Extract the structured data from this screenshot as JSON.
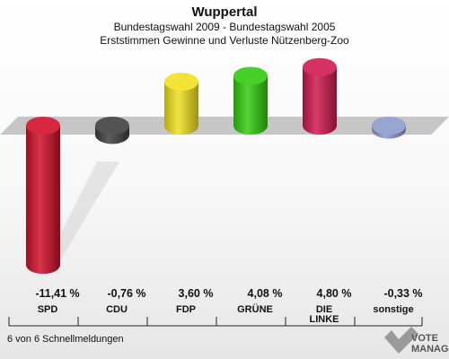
{
  "chart_data": {
    "type": "bar",
    "title": "Wuppertal",
    "subtitle_1": "Bundestagswahl 2009 - Bundestagswahl 2005",
    "subtitle_2": "Erststimmen Gewinne und Verluste Nützenberg-Zoo",
    "categories": [
      "SPD",
      "CDU",
      "FDP",
      "GRÜNE",
      "DIE\nLINKE",
      "sonstige"
    ],
    "values": [
      -11.41,
      -0.76,
      3.6,
      4.08,
      4.8,
      -0.33
    ],
    "value_labels": [
      "-11,41 %",
      "-0,76 %",
      "3,60 %",
      "4,08 %",
      "4,80 %",
      "-0,33 %"
    ],
    "colors": [
      "#d0102a",
      "#404040",
      "#f0e020",
      "#33cc10",
      "#d01a50",
      "#8a9ccc"
    ],
    "ylim": [
      -11.41,
      4.8
    ],
    "footnote": "6 von 6 Schnellmeldungen",
    "logo_lines": [
      "VOTE",
      "MANAGER"
    ]
  }
}
